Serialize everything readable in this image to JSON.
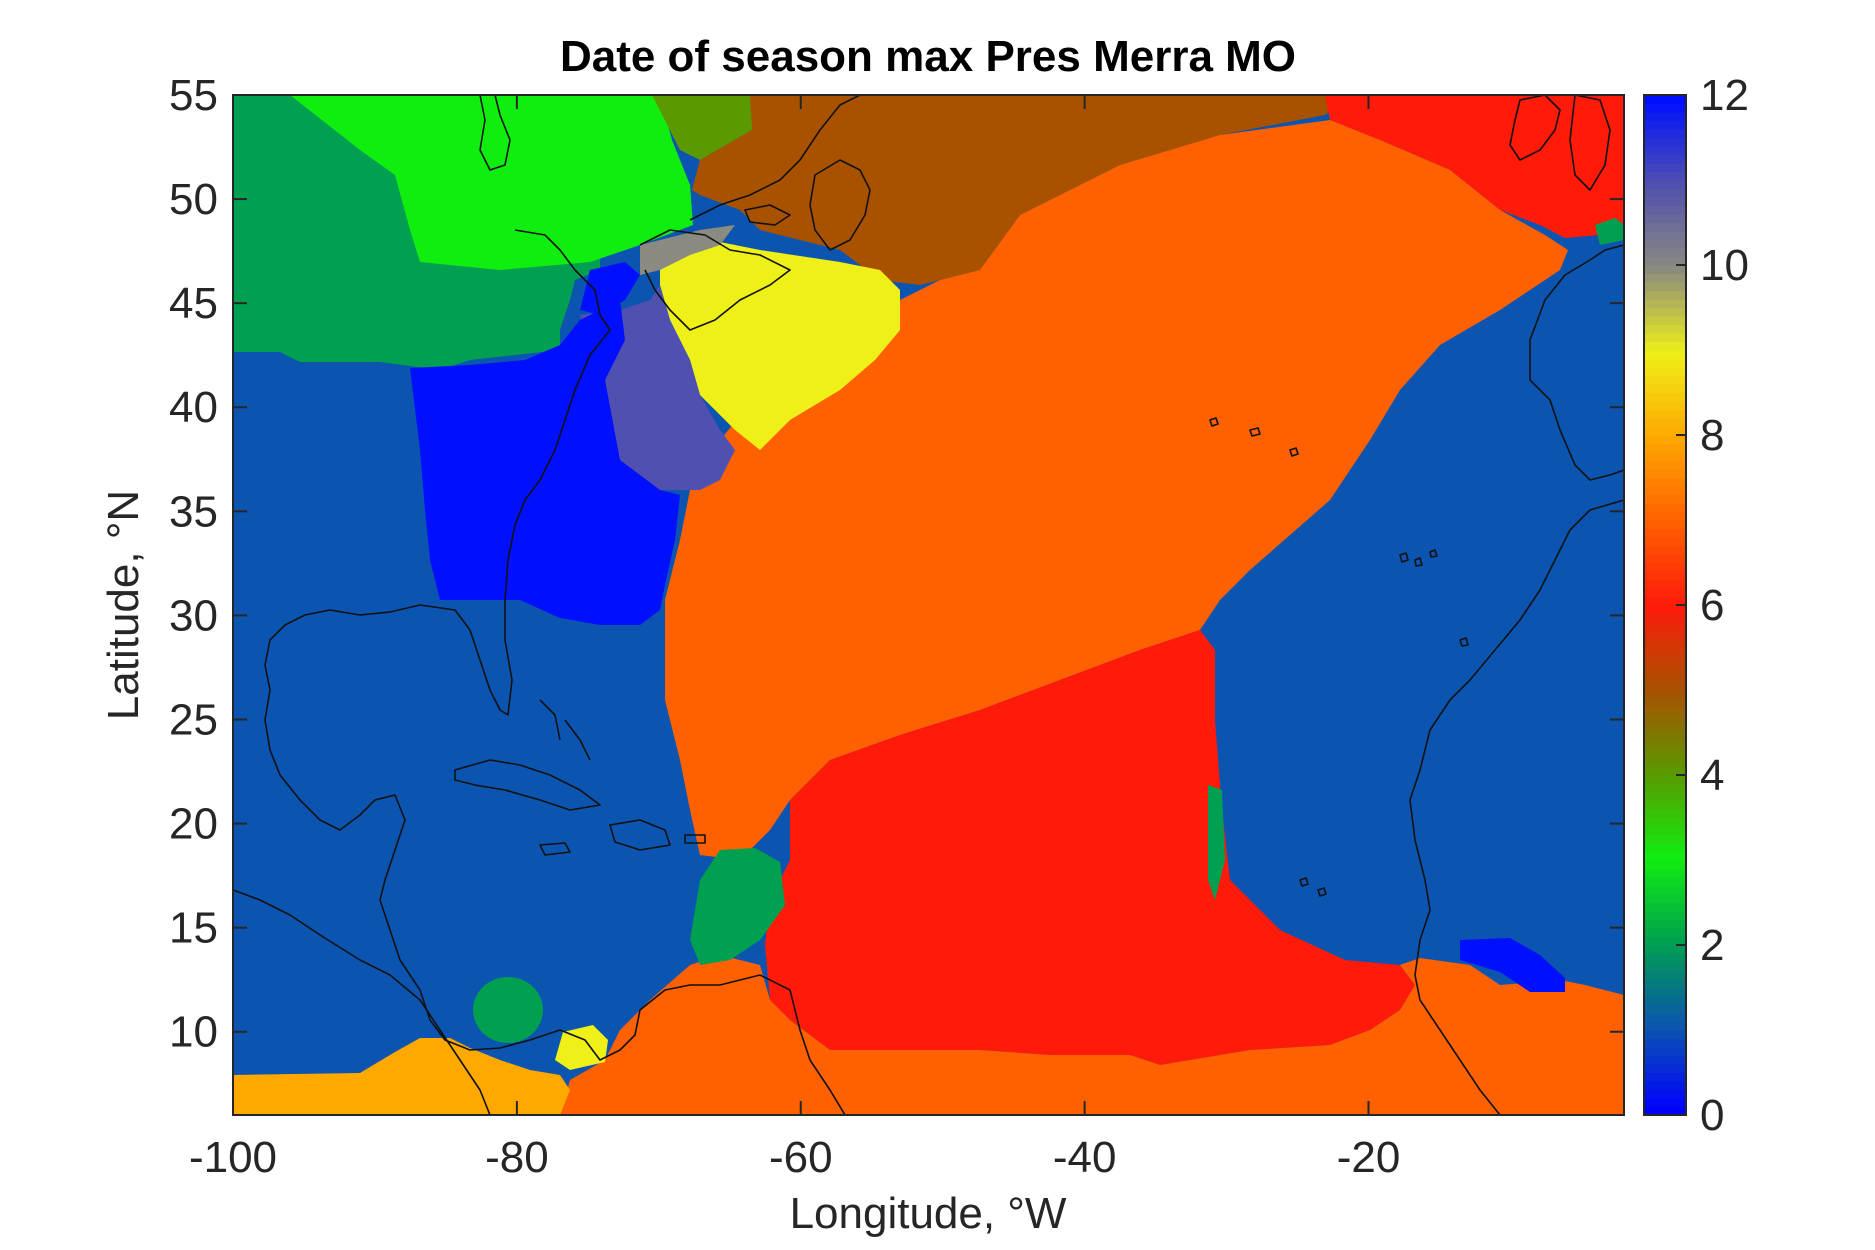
{
  "figure": {
    "title": "Date of season max Pres Merra MO",
    "xlabel": "Longitude, °W",
    "ylabel": "Latitude, °N"
  },
  "chart_data": {
    "type": "heatmap",
    "title": "Date of season max Pres Merra MO",
    "xlabel": "Longitude, °W",
    "ylabel": "Latitude, °N",
    "xlim": [
      -100,
      -2
    ],
    "ylim": [
      6,
      55
    ],
    "xticks": [
      -100,
      -80,
      -60,
      -40,
      -20
    ],
    "yticks": [
      10,
      15,
      20,
      25,
      30,
      35,
      40,
      45,
      50,
      55
    ],
    "grid": false,
    "colorbar": {
      "range": [
        0,
        12
      ],
      "ticks": [
        0,
        2,
        4,
        6,
        8,
        10,
        12
      ],
      "position": "right",
      "colors": [
        "#0000ff",
        "#0b55b0",
        "#00a050",
        "#10ee10",
        "#5a9a00",
        "#a85200",
        "#ff1a0a",
        "#ff6000",
        "#ffa800",
        "#eef018",
        "#8a8a80",
        "#5050b0",
        "#0010ff"
      ]
    },
    "regions": [
      {
        "label": "month ~1",
        "value": 1.0,
        "color": "#0b55b0"
      },
      {
        "label": "month ~2",
        "value": 2.0,
        "color": "#00a050"
      },
      {
        "label": "month ~3",
        "value": 3.0,
        "color": "#10ee10"
      },
      {
        "label": "month ~4",
        "value": 4.0,
        "color": "#5a9a00"
      },
      {
        "label": "month ~5",
        "value": 5.0,
        "color": "#a85200"
      },
      {
        "label": "month ~6",
        "value": 6.0,
        "color": "#ff1a0a"
      },
      {
        "label": "month ~7",
        "value": 7.0,
        "color": "#ff6000"
      },
      {
        "label": "month ~8",
        "value": 8.0,
        "color": "#ffa800"
      },
      {
        "label": "month ~9",
        "value": 9.0,
        "color": "#eef018"
      },
      {
        "label": "month ~10",
        "value": 10.0,
        "color": "#8a8a80"
      },
      {
        "label": "month ~11",
        "value": 11.0,
        "color": "#5050b0"
      },
      {
        "label": "month ~12",
        "value": 12.0,
        "color": "#0010ff"
      }
    ]
  }
}
